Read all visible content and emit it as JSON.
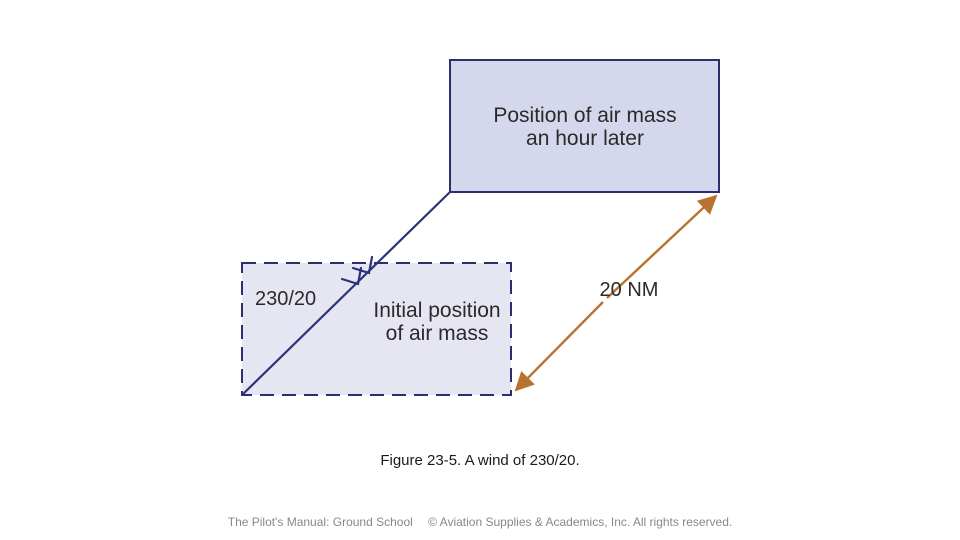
{
  "diagram": {
    "later_box_label": [
      "Position of air mass",
      "an hour later"
    ],
    "initial_box_label": [
      "Initial position",
      "of air mass"
    ],
    "wind_label": "230/20",
    "distance_label": "20 NM"
  },
  "caption": {
    "figure_number": "Figure 23-5.",
    "text": "A wind of 230/20."
  },
  "footer": {
    "book": "The Pilot's Manual: Ground School",
    "copyright": "© Aviation Supplies & Academics, Inc. All rights reserved."
  },
  "colors": {
    "box_fill_later": "#d5d8ec",
    "box_fill_initial": "#e6e6f3",
    "box_stroke": "#2b2f6b",
    "wind_arrow": "#2d3278",
    "distance_arrow": "#b8742f"
  }
}
